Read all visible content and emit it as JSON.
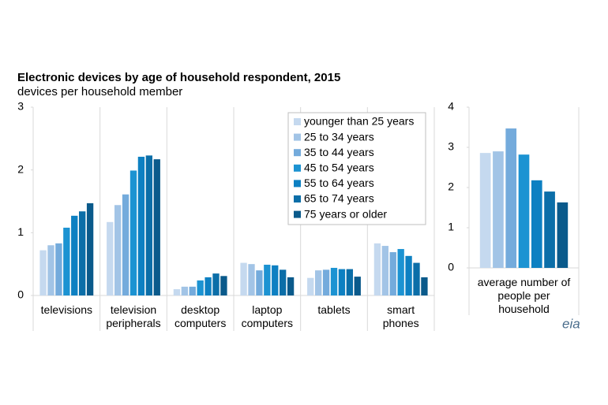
{
  "chart_data": [
    {
      "type": "bar",
      "title": "Electronic devices by age of household respondent, 2015",
      "subtitle": "devices per household member",
      "categories": [
        "televisions",
        "television\nperipherals",
        "desktop\ncomputers",
        "laptop\ncomputers",
        "tablets",
        "smart\nphones"
      ],
      "series": [
        {
          "name": "younger than 25 years",
          "color": "#c5d9ef",
          "values": [
            0.72,
            1.17,
            0.1,
            0.52,
            0.28,
            0.83
          ]
        },
        {
          "name": "25 to 34 years",
          "color": "#a2c4e6",
          "values": [
            0.8,
            1.44,
            0.14,
            0.5,
            0.4,
            0.79
          ]
        },
        {
          "name": "35 to 44 years",
          "color": "#74abdc",
          "values": [
            0.83,
            1.61,
            0.14,
            0.4,
            0.41,
            0.69
          ]
        },
        {
          "name": "45 to 54 years",
          "color": "#1c93d2",
          "values": [
            1.08,
            1.99,
            0.24,
            0.49,
            0.44,
            0.74
          ]
        },
        {
          "name": "55 to 64 years",
          "color": "#0d80c2",
          "values": [
            1.27,
            2.21,
            0.29,
            0.48,
            0.42,
            0.63
          ]
        },
        {
          "name": "65 to 74 years",
          "color": "#0b6ea8",
          "values": [
            1.34,
            2.23,
            0.35,
            0.41,
            0.42,
            0.52
          ]
        },
        {
          "name": "75 years or older",
          "color": "#0a5a8b",
          "values": [
            1.47,
            2.17,
            0.31,
            0.29,
            0.3,
            0.29
          ]
        }
      ],
      "ylim": [
        0,
        3
      ],
      "yticks": [
        0,
        1,
        2,
        3
      ],
      "legend": "top-right"
    },
    {
      "type": "bar",
      "categories": [
        "average number of\npeople per\nhousehold"
      ],
      "series": [
        {
          "color": "#c5d9ef",
          "values": [
            2.86
          ]
        },
        {
          "color": "#a2c4e6",
          "values": [
            2.9
          ]
        },
        {
          "color": "#74abdc",
          "values": [
            3.47
          ]
        },
        {
          "color": "#1c93d2",
          "values": [
            2.82
          ]
        },
        {
          "color": "#0d80c2",
          "values": [
            2.18
          ]
        },
        {
          "color": "#0b6ea8",
          "values": [
            1.9
          ]
        },
        {
          "color": "#0a5a8b",
          "values": [
            1.63
          ]
        }
      ],
      "ylim": [
        0,
        4
      ],
      "yticks": [
        0,
        1,
        2,
        3,
        4
      ]
    }
  ],
  "logo": "eia"
}
